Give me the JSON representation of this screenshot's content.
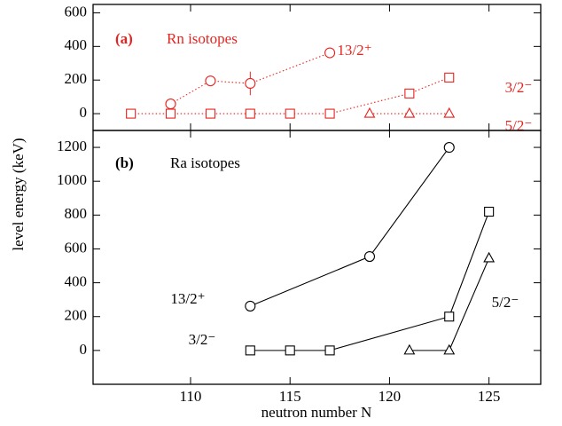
{
  "ylabel": "level energy (keV)",
  "xlabel": "neutron number N",
  "x_axis": {
    "xlim": [
      105.1,
      127.6
    ],
    "xticks": [
      110,
      115,
      120,
      125
    ]
  },
  "chart_data": [
    {
      "type": "line",
      "tag": "(a)",
      "title": "Rn isotopes",
      "color": "#e8231f",
      "line_style": "dotted",
      "ylim": [
        -100,
        650
      ],
      "yticks": [
        0,
        200,
        400,
        600
      ],
      "series": [
        {
          "name": "13/2⁺",
          "marker": "circle",
          "x": [
            109,
            111,
            113,
            117
          ],
          "values": [
            58,
            195,
            180,
            362
          ],
          "errors": [
            null,
            null,
            70,
            null
          ]
        },
        {
          "name": "3/2⁻",
          "marker": "square",
          "x": [
            107,
            109,
            111,
            113,
            115,
            117,
            121,
            123
          ],
          "values": [
            0,
            0,
            0,
            0,
            0,
            0,
            120,
            215
          ]
        },
        {
          "name": "5/2⁻",
          "marker": "triangle",
          "x": [
            119,
            121,
            123
          ],
          "values": [
            0,
            0,
            0
          ]
        }
      ]
    },
    {
      "type": "line",
      "tag": "(b)",
      "title": "Ra isotopes",
      "color": "#000000",
      "line_style": "solid",
      "ylim": [
        -200,
        1300
      ],
      "yticks": [
        0,
        200,
        400,
        600,
        800,
        1000,
        1200
      ],
      "series": [
        {
          "name": "13/2⁺",
          "marker": "circle",
          "x": [
            113,
            119,
            123
          ],
          "values": [
            262,
            555,
            1200
          ],
          "errors": [
            20,
            null,
            null
          ]
        },
        {
          "name": "3/2⁻",
          "marker": "square",
          "x": [
            113,
            115,
            117,
            123,
            125
          ],
          "values": [
            0,
            0,
            0,
            200,
            820
          ]
        },
        {
          "name": "5/2⁻",
          "marker": "triangle",
          "x": [
            121,
            123,
            125
          ],
          "values": [
            0,
            0,
            545
          ]
        }
      ]
    }
  ]
}
